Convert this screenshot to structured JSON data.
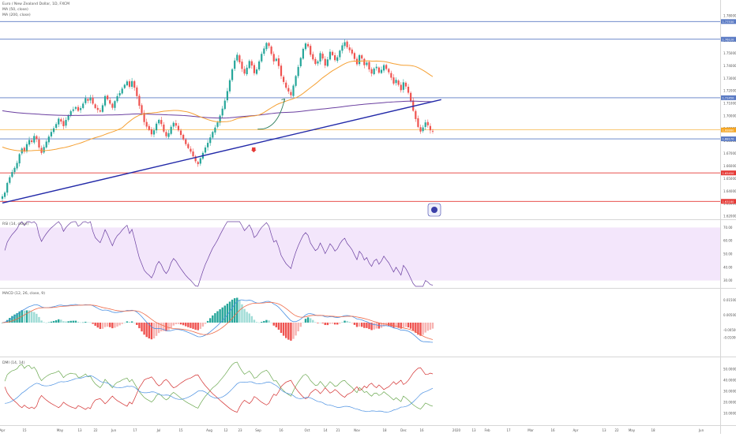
{
  "legend": {
    "symbol_line": "Euro / New Zealand Dollar, 1D, FXCM",
    "ma_fast": "MA (50, close)",
    "ma_slow": "MA (200, close)"
  },
  "indicators": {
    "rsi_label": "RSI (14, close)",
    "macd_label": "MACD (12, 26, close, 9)",
    "dmi_label": "DMI (14, 14)"
  },
  "colors": {
    "candle_up": "#26a69a",
    "candle_down": "#ef5350",
    "ma50": "#f5a033",
    "ma200": "#6a3fa0",
    "trendline": "#2229a8",
    "blue_level": "#5b7bc4",
    "red_level": "#e53935",
    "arrow_up": "#2e7d5b",
    "arrow_down": "#e53935",
    "rsi_band": "#f3e6fb",
    "rsi_line": "#6a3fa0",
    "macd_line": "#4a90e2",
    "signal_line": "#ef6c4a",
    "hist_pos_dark": "#26a69a",
    "hist_pos_light": "#9fdcd6",
    "hist_neg_dark": "#ef5350",
    "hist_neg_light": "#f7b3b1",
    "di_plus": "#6aa84f",
    "di_minus": "#d32f2f",
    "adx": "#4a90e2"
  },
  "chart_data": [
    {
      "type": "candlestick",
      "pane": "price",
      "ylim": [
        1.6175,
        1.7925
      ],
      "price_axis_ticks": [
        "1.78000",
        "1.76000",
        "1.75000",
        "1.74000",
        "1.73000",
        "1.72000",
        "1.71000",
        "1.70000",
        "1.69000",
        "1.68000",
        "1.67000",
        "1.66000",
        "1.65000",
        "1.64000",
        "1.63000",
        "1.62000"
      ],
      "x_ticks": [
        "Apr",
        "15",
        "May",
        "13",
        "22",
        "Jun",
        "17",
        "Jul",
        "15",
        "Aug",
        "12",
        "23",
        "Sep",
        "16",
        "Oct",
        "14",
        "21",
        "Nov",
        "18",
        "Dec",
        "16",
        "2020",
        "13",
        "Feb",
        "17",
        "Mar",
        "16",
        "Apr",
        "13",
        "22",
        "May",
        "18",
        "Jun"
      ],
      "horizontal_levels": [
        {
          "price": 1.7753,
          "color": "blue",
          "label": "1.77530"
        },
        {
          "price": 1.7612,
          "color": "blue",
          "label": "1.76120"
        },
        {
          "price": 1.7145,
          "color": "blue",
          "label": "1.71450"
        },
        {
          "price": 1.6888,
          "color": "orange",
          "label": "1.68880"
        },
        {
          "price": 1.6817,
          "color": "blue",
          "label": "1.68170"
        },
        {
          "price": 1.6545,
          "color": "red",
          "label": "1.65450"
        },
        {
          "price": 1.6318,
          "color": "red",
          "label": "1.63180"
        }
      ],
      "trendline": {
        "from": {
          "date": "2019-03-29",
          "price": 1.6305
        },
        "to": {
          "date": "2020-06-11",
          "price": 1.713
        }
      },
      "projection_arrow": {
        "direction": "up",
        "from": {
          "date": "2019-12-10",
          "price": 1.6895
        },
        "to": {
          "date": "2020-01-06",
          "price": 1.7135
        }
      },
      "down_arrow": {
        "date": "2019-12-06",
        "price": 1.673
      },
      "ma_fast_start": 1.676,
      "ma_fast_end": 1.7215,
      "ma_slow_start": 1.7045,
      "ma_slow_end": 1.7025,
      "closes": [
        1.6358,
        1.6388,
        1.6465,
        1.651,
        1.6552,
        1.6585,
        1.6625,
        1.6695,
        1.674,
        1.6715,
        1.6775,
        1.6808,
        1.6792,
        1.684,
        1.6815,
        1.6748,
        1.6705,
        1.6752,
        1.6795,
        1.6835,
        1.6872,
        1.6901,
        1.6935,
        1.6978,
        1.6955,
        1.6918,
        1.6968,
        1.7005,
        1.7038,
        1.7052,
        1.707,
        1.7041,
        1.7062,
        1.7098,
        1.7141,
        1.7121,
        1.7148,
        1.7098,
        1.7063,
        1.7048,
        1.7035,
        1.7085,
        1.7158,
        1.7132,
        1.7098,
        1.7065,
        1.7118,
        1.7158,
        1.7182,
        1.7218,
        1.7248,
        1.7275,
        1.7232,
        1.7278,
        1.7225,
        1.7158,
        1.7081,
        1.7022,
        1.6951,
        1.6915,
        1.6888,
        1.6853,
        1.6885,
        1.6938,
        1.6968,
        1.6935,
        1.6875,
        1.6838,
        1.6862,
        1.6913,
        1.6945,
        1.6922,
        1.6885,
        1.6848,
        1.6812,
        1.6775,
        1.6743,
        1.6715,
        1.6678,
        1.6638,
        1.6615,
        1.6662,
        1.6705,
        1.6748,
        1.6785,
        1.6828,
        1.6872,
        1.6907,
        1.6948,
        1.7002,
        1.7058,
        1.7122,
        1.7198,
        1.7285,
        1.7372,
        1.7442,
        1.7488,
        1.7428,
        1.7375,
        1.7338,
        1.7385,
        1.7438,
        1.7402,
        1.7341,
        1.7371,
        1.7435,
        1.7495,
        1.7538,
        1.7582,
        1.7558,
        1.7495,
        1.7435,
        1.7455,
        1.7398,
        1.7318,
        1.7271,
        1.7225,
        1.7195,
        1.7165,
        1.7242,
        1.7318,
        1.7391,
        1.7462,
        1.7535,
        1.7578,
        1.7555,
        1.7488,
        1.7451,
        1.7415,
        1.7435,
        1.7501,
        1.7458,
        1.7402,
        1.7451,
        1.7512,
        1.7485,
        1.7445,
        1.7468,
        1.7521,
        1.7563,
        1.7588,
        1.7548,
        1.7525,
        1.7498,
        1.7455,
        1.7412,
        1.7485,
        1.7458,
        1.7405,
        1.7425,
        1.7371,
        1.7338,
        1.7378,
        1.7392,
        1.7345,
        1.7368,
        1.7405,
        1.7375,
        1.7348,
        1.7305,
        1.7258,
        1.7288,
        1.7248,
        1.7205,
        1.7268,
        1.7235,
        1.7185,
        1.7118,
        1.7041,
        1.6975,
        1.6912,
        1.6875,
        1.6908,
        1.6948,
        1.6925,
        1.6885,
        1.6875
      ]
    },
    {
      "type": "line",
      "pane": "rsi",
      "ylim": [
        25,
        75
      ],
      "band": [
        30,
        70
      ],
      "axis_ticks": [
        "70.00",
        "60.00",
        "50.00",
        "40.00",
        "30.00"
      ]
    },
    {
      "type": "histogram+line",
      "pane": "macd",
      "ylim": [
        -0.022,
        0.022
      ],
      "axis_ticks": [
        "0.01500",
        "0.00500",
        "-0.00500",
        "-0.01000"
      ]
    },
    {
      "type": "line",
      "pane": "dmi",
      "ylim": [
        0,
        60
      ],
      "axis_ticks": [
        "50.0000",
        "40.0000",
        "30.0000",
        "20.0000",
        "10.0000"
      ]
    }
  ]
}
